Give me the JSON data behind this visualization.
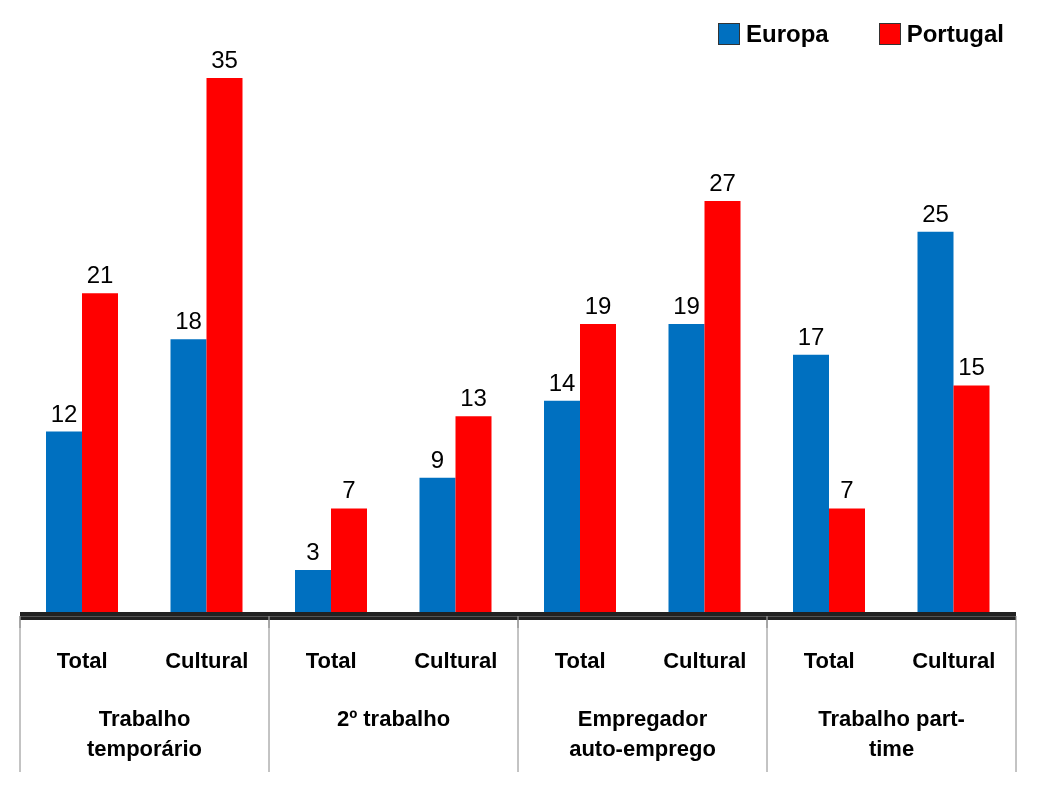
{
  "chart_data": {
    "type": "bar",
    "categories": [
      "Total",
      "Cultural",
      "Total",
      "Cultural",
      "Total",
      "Cultural",
      "Total",
      "Cultural"
    ],
    "series": [
      {
        "name": "Europa",
        "color": "#0070c0",
        "values": [
          12,
          18,
          3,
          9,
          14,
          19,
          17,
          25
        ]
      },
      {
        "name": "Portugal",
        "color": "#ff0000",
        "values": [
          21,
          35,
          7,
          13,
          19,
          27,
          7,
          15
        ]
      }
    ],
    "data_labels": true,
    "legend": "top right",
    "annotations": [
      "Trabalho temporário",
      "2º trabalho",
      "Empregador auto-emprego",
      "Trabalho part-time"
    ]
  }
}
